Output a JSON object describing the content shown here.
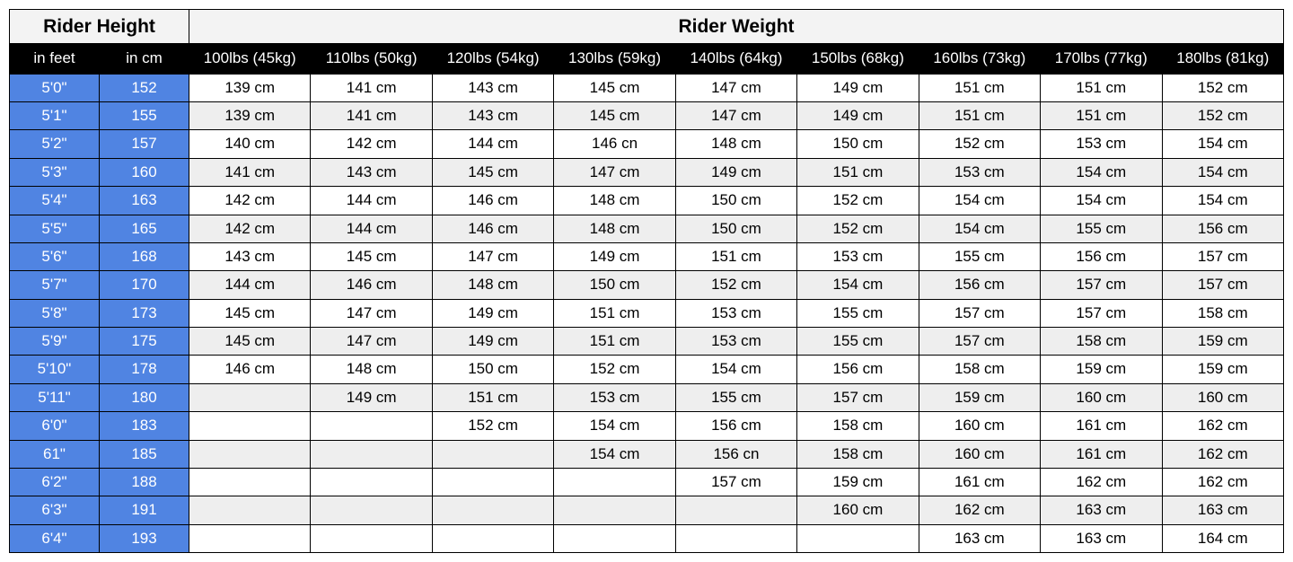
{
  "headers": {
    "height_group": "Rider Height",
    "weight_group": "Rider Weight",
    "height_feet": "in feet",
    "height_cm": "in cm",
    "weights": [
      "100lbs (45kg)",
      "110lbs (50kg)",
      "120lbs (54kg)",
      "130lbs (59kg)",
      "140lbs (64kg)",
      "150lbs (68kg)",
      "160lbs (73kg)",
      "170lbs (77kg)",
      "180lbs (81kg)"
    ]
  },
  "rows": [
    {
      "feet": "5'0\"",
      "cm": "152",
      "cells": [
        "139 cm",
        "141 cm",
        "143 cm",
        "145 cm",
        "147 cm",
        "149 cm",
        "151 cm",
        "151 cm",
        "152 cm"
      ]
    },
    {
      "feet": "5'1\"",
      "cm": "155",
      "cells": [
        "139 cm",
        "141 cm",
        "143 cm",
        "145 cm",
        "147 cm",
        "149 cm",
        "151 cm",
        "151 cm",
        "152 cm"
      ]
    },
    {
      "feet": "5'2\"",
      "cm": "157",
      "cells": [
        "140 cm",
        "142 cm",
        "144 cm",
        "146 cn",
        "148 cm",
        "150 cm",
        "152 cm",
        "153 cm",
        "154 cm"
      ]
    },
    {
      "feet": "5'3\"",
      "cm": "160",
      "cells": [
        "141 cm",
        "143 cm",
        "145 cm",
        "147 cm",
        "149 cm",
        "151 cm",
        "153 cm",
        "154 cm",
        "154 cm"
      ]
    },
    {
      "feet": "5'4\"",
      "cm": "163",
      "cells": [
        "142 cm",
        "144 cm",
        "146 cm",
        "148 cm",
        "150 cm",
        "152 cm",
        "154 cm",
        "154 cm",
        "154 cm"
      ]
    },
    {
      "feet": "5'5\"",
      "cm": "165",
      "cells": [
        "142 cm",
        "144 cm",
        "146 cm",
        "148 cm",
        "150 cm",
        "152 cm",
        "154 cm",
        "155 cm",
        "156 cm"
      ]
    },
    {
      "feet": "5'6\"",
      "cm": "168",
      "cells": [
        "143 cm",
        "145 cm",
        "147 cm",
        "149 cm",
        "151 cm",
        "153 cm",
        "155 cm",
        "156 cm",
        "157 cm"
      ]
    },
    {
      "feet": "5'7\"",
      "cm": "170",
      "cells": [
        "144 cm",
        "146 cm",
        "148 cm",
        "150 cm",
        "152 cm",
        "154 cm",
        "156 cm",
        "157 cm",
        "157 cm"
      ]
    },
    {
      "feet": "5'8\"",
      "cm": "173",
      "cells": [
        "145 cm",
        "147 cm",
        "149 cm",
        "151 cm",
        "153 cm",
        "155 cm",
        "157 cm",
        "157 cm",
        "158 cm"
      ]
    },
    {
      "feet": "5'9\"",
      "cm": "175",
      "cells": [
        "145 cm",
        "147 cm",
        "149 cm",
        "151 cm",
        "153 cm",
        "155 cm",
        "157 cm",
        "158 cm",
        "159 cm"
      ]
    },
    {
      "feet": "5'10\"",
      "cm": "178",
      "cells": [
        "146 cm",
        "148 cm",
        "150 cm",
        "152 cm",
        "154 cm",
        "156 cm",
        "158 cm",
        "159 cm",
        "159 cm"
      ]
    },
    {
      "feet": "5'11\"",
      "cm": "180",
      "cells": [
        "",
        "149 cm",
        "151 cm",
        "153 cm",
        "155 cm",
        "157 cm",
        "159 cm",
        "160 cm",
        "160 cm"
      ]
    },
    {
      "feet": "6'0\"",
      "cm": "183",
      "cells": [
        "",
        "",
        "152 cm",
        "154 cm",
        "156 cm",
        "158 cm",
        "160 cm",
        "161 cm",
        "162 cm"
      ]
    },
    {
      "feet": "61\"",
      "cm": "185",
      "cells": [
        "",
        "",
        "",
        "154 cm",
        "156 cn",
        "158 cm",
        "160 cm",
        "161 cm",
        "162 cm"
      ]
    },
    {
      "feet": "6'2\"",
      "cm": "188",
      "cells": [
        "",
        "",
        "",
        "",
        "157 cm",
        "159 cm",
        "161 cm",
        "162 cm",
        "162 cm"
      ]
    },
    {
      "feet": "6'3\"",
      "cm": "191",
      "cells": [
        "",
        "",
        "",
        "",
        "",
        "160 cm",
        "162 cm",
        "163 cm",
        "163 cm"
      ]
    },
    {
      "feet": "6'4\"",
      "cm": "193",
      "cells": [
        "",
        "",
        "",
        "",
        "",
        "",
        "163 cm",
        "163 cm",
        "164 cm"
      ]
    }
  ],
  "style": {
    "height_col_bg": "#5084e2",
    "height_col_fg": "#ffffff",
    "alt_row_bg": "#eeeeee",
    "border_color": "#000000",
    "header_bg": "#f3f3f3",
    "subheader_bg": "#000000",
    "subheader_fg": "#ffffff"
  }
}
